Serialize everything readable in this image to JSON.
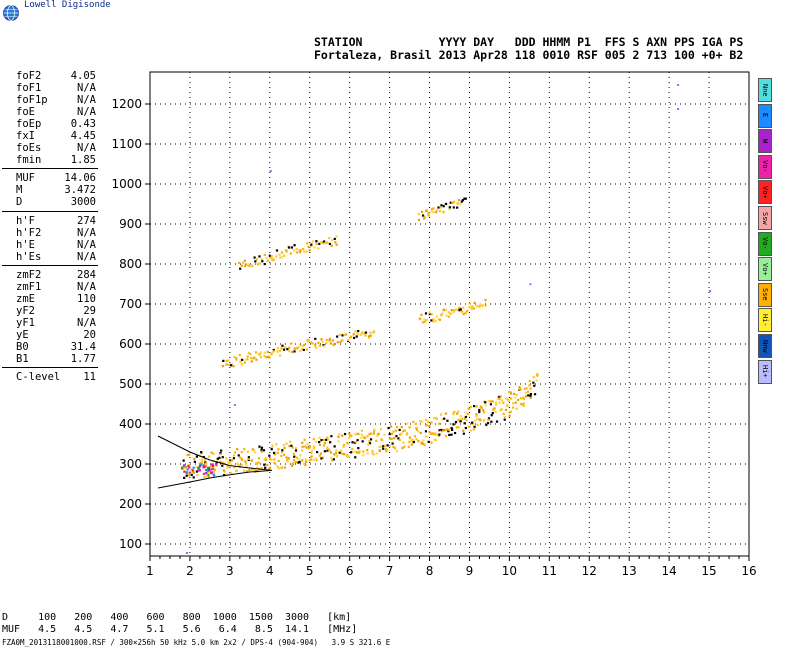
{
  "header": {
    "brand": "Lowell Digisonde",
    "line1": "STATION           YYYY DAY   DDD HHMM P1  FFS S AXN PPS IGA PS",
    "line2": "Fortaleza, Brasil 2013 Apr28 118 0010 RSF 005 2 713 100 +0+ B2"
  },
  "params": [
    {
      "k": "foF2",
      "v": "4.05"
    },
    {
      "k": "foF1",
      "v": "N/A"
    },
    {
      "k": "foF1p",
      "v": "N/A"
    },
    {
      "k": "foE",
      "v": "N/A"
    },
    {
      "k": "foEp",
      "v": "0.43"
    },
    {
      "k": "fxI",
      "v": "4.45"
    },
    {
      "k": "foEs",
      "v": "N/A"
    },
    {
      "k": "fmin",
      "v": "1.85"
    },
    {
      "divider": true
    },
    {
      "k": "MUF",
      "v": "14.06"
    },
    {
      "k": "M",
      "v": "3.472"
    },
    {
      "k": "D",
      "v": "3000"
    },
    {
      "divider": true
    },
    {
      "k": "h'F",
      "v": "274"
    },
    {
      "k": "h'F2",
      "v": "N/A"
    },
    {
      "k": "h'E",
      "v": "N/A"
    },
    {
      "k": "h'Es",
      "v": "N/A"
    },
    {
      "divider": true
    },
    {
      "k": "zmF2",
      "v": "284"
    },
    {
      "k": "zmF1",
      "v": "N/A"
    },
    {
      "k": "zmE",
      "v": "110"
    },
    {
      "k": "yF2",
      "v": "29"
    },
    {
      "k": "yF1",
      "v": "N/A"
    },
    {
      "k": "yE",
      "v": "20"
    },
    {
      "k": "B0",
      "v": "31.4"
    },
    {
      "k": "B1",
      "v": "1.77"
    },
    {
      "divider": true
    },
    {
      "k": "C-level",
      "v": "11"
    }
  ],
  "legend": [
    {
      "label": "Nne",
      "color": "#55dddd"
    },
    {
      "label": "E",
      "color": "#1a8cff"
    },
    {
      "label": "W",
      "color": "#aa22cc"
    },
    {
      "label": "Vo-",
      "color": "#ee22aa"
    },
    {
      "label": "Vo+",
      "color": "#ff2222"
    },
    {
      "label": "Ssw",
      "color": "#f2a6a6"
    },
    {
      "label": "Vo-",
      "color": "#22aa22"
    },
    {
      "label": "Vo+",
      "color": "#99ee99"
    },
    {
      "label": "Sse",
      "color": "#ffb000"
    },
    {
      "label": "Hi-",
      "color": "#ffee33"
    },
    {
      "label": "Nnw",
      "color": "#1155bb"
    },
    {
      "label": "Hi+",
      "color": "#bbbbff"
    }
  ],
  "footer": {
    "d_row": "D     100   200   400   600   800  1000  1500  3000   [km]",
    "muf_row": "MUF   4.5   4.5   4.7   5.1   5.6   6.4   8.5  14.1   [MHz]",
    "file_line": "FZA0M_2013118001000.RSF / 300×256h 50 kHz 5.0 km 2x2 / DPS-4 (904-904)   3.9 S 321.6 E"
  },
  "chart_data": {
    "type": "scatter",
    "title": "",
    "xlabel": "",
    "ylabel": "",
    "xlim": [
      1,
      16
    ],
    "ylim": [
      70,
      1280
    ],
    "xticks": [
      1,
      2,
      3,
      4,
      5,
      6,
      7,
      8,
      9,
      10,
      11,
      12,
      13,
      14,
      15,
      16
    ],
    "yticks": [
      100,
      200,
      300,
      400,
      500,
      600,
      700,
      800,
      900,
      1000,
      1100,
      1200
    ],
    "grid": true,
    "traces": [
      {
        "name": "F trace 1st hop",
        "points": [
          [
            1.8,
            280
          ],
          [
            2.0,
            285
          ],
          [
            2.5,
            290
          ],
          [
            3.0,
            295
          ],
          [
            3.5,
            302
          ],
          [
            4.0,
            308
          ],
          [
            4.5,
            315
          ],
          [
            5.0,
            322
          ],
          [
            5.5,
            330
          ],
          [
            6.0,
            337
          ],
          [
            6.5,
            345
          ],
          [
            7.0,
            352
          ],
          [
            7.5,
            362
          ],
          [
            8.0,
            375
          ],
          [
            8.5,
            388
          ],
          [
            9.0,
            402
          ],
          [
            9.3,
            415
          ],
          [
            10.0,
            440
          ],
          [
            10.3,
            460
          ],
          [
            10.5,
            480
          ],
          [
            10.7,
            500
          ]
        ]
      },
      {
        "name": "F trace 2nd hop",
        "points": [
          [
            2.8,
            545
          ],
          [
            3.0,
            553
          ],
          [
            3.5,
            565
          ],
          [
            4.0,
            575
          ],
          [
            4.5,
            588
          ],
          [
            5.0,
            598
          ],
          [
            5.5,
            606
          ],
          [
            5.9,
            615
          ],
          [
            6.3,
            622
          ],
          [
            6.6,
            625
          ]
        ]
      },
      {
        "name": "F trace 3rd hop",
        "points": [
          [
            3.2,
            790
          ],
          [
            3.5,
            800
          ],
          [
            4.0,
            815
          ],
          [
            4.3,
            828
          ],
          [
            4.8,
            838
          ],
          [
            5.3,
            850
          ],
          [
            5.7,
            858
          ]
        ]
      },
      {
        "name": "F trace 4th hop",
        "points": [
          [
            7.7,
            660
          ],
          [
            8.0,
            665
          ],
          [
            8.5,
            675
          ],
          [
            9.0,
            690
          ],
          [
            9.4,
            700
          ]
        ]
      },
      {
        "name": "F trace 5th hop",
        "points": [
          [
            7.7,
            918
          ],
          [
            8.0,
            930
          ],
          [
            8.5,
            945
          ],
          [
            8.9,
            958
          ]
        ]
      }
    ],
    "scattered": [
      [
        4.0,
        1035
      ],
      [
        10.5,
        752
      ],
      [
        14.2,
        1250
      ],
      [
        14.2,
        1190
      ],
      [
        15.0,
        735
      ],
      [
        1.9,
        80
      ],
      [
        3.1,
        450
      ]
    ],
    "profile": {
      "upper": [
        [
          1.2,
          370
        ],
        [
          2.0,
          330
        ],
        [
          2.5,
          310
        ],
        [
          3.0,
          296
        ],
        [
          3.5,
          290
        ],
        [
          4.05,
          284
        ]
      ],
      "lower": [
        [
          1.2,
          240
        ],
        [
          2.0,
          255
        ],
        [
          2.5,
          265
        ],
        [
          3.0,
          273
        ],
        [
          3.5,
          280
        ],
        [
          4.05,
          284
        ]
      ]
    }
  }
}
